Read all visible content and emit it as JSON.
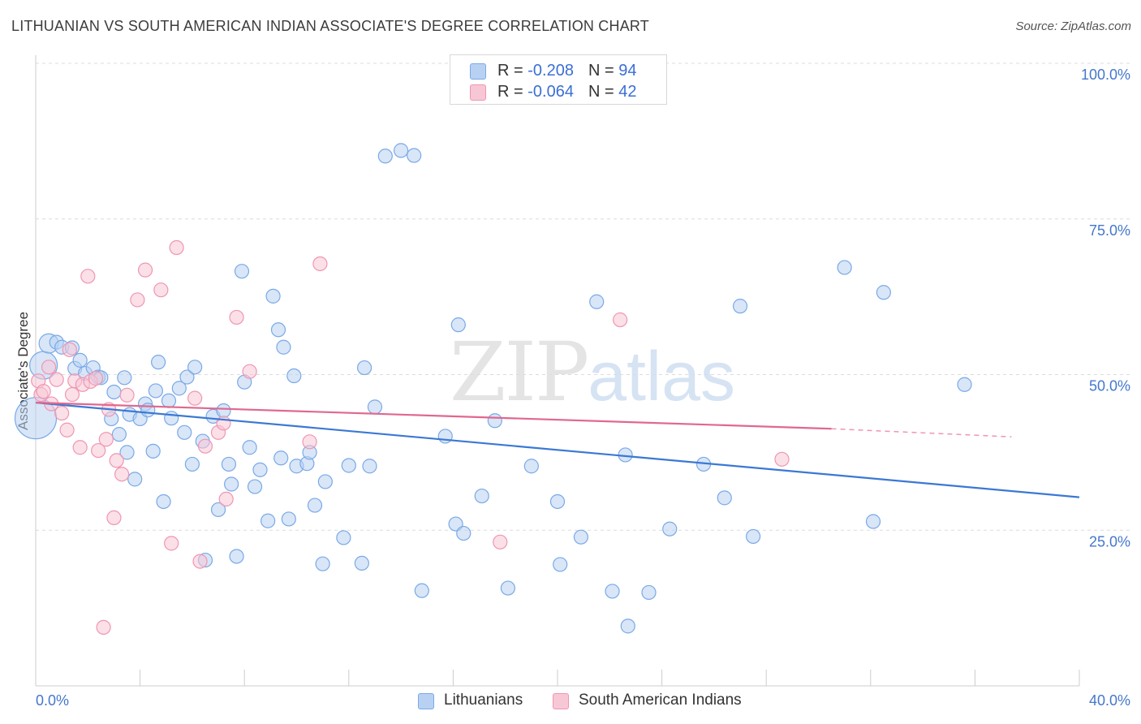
{
  "title": "LITHUANIAN VS SOUTH AMERICAN INDIAN ASSOCIATE'S DEGREE CORRELATION CHART",
  "source": "Source: ZipAtlas.com",
  "watermark": {
    "zip": "ZIP",
    "atlas": "atlas"
  },
  "legend": [
    {
      "r_label": "R = ",
      "r": "-0.208",
      "n_label": "N = ",
      "n": "94",
      "color": "#7aa9e6",
      "fill": "#b8d1f3"
    },
    {
      "r_label": "R = ",
      "r": "-0.064",
      "n_label": "N = ",
      "n": "42",
      "color": "#ef96b2",
      "fill": "#f8c7d5"
    }
  ],
  "bottom_legend": [
    "Lithuanians",
    "South American Indians"
  ],
  "chart_data": {
    "type": "scatter",
    "title": "LITHUANIAN VS SOUTH AMERICAN INDIAN ASSOCIATE'S DEGREE CORRELATION CHART",
    "xlabel": "",
    "ylabel": "Associate's Degree",
    "xlim": [
      0,
      40
    ],
    "ylim": [
      0,
      100
    ],
    "x_tick_labels": [
      "0.0%",
      "40.0%"
    ],
    "y_ticks": [
      25,
      50,
      75,
      100
    ],
    "y_tick_labels": [
      "25.0%",
      "50.0%",
      "75.0%",
      "100.0%"
    ],
    "grid": "horizontal dashed",
    "legend_position": "top-center",
    "series": [
      {
        "name": "Lithuanians",
        "color": "#3b78d4",
        "marker_fill": "#b8d1f3",
        "marker_stroke": "#7aa9e6",
        "trend": {
          "x": [
            0,
            40
          ],
          "y": [
            45.5,
            30.3
          ]
        },
        "points": [
          [
            0.0,
            43.0,
            3
          ],
          [
            0.3,
            51.5,
            2
          ],
          [
            0.5,
            55.0,
            1.4
          ],
          [
            0.8,
            55.2,
            1
          ],
          [
            1.0,
            54.4,
            1
          ],
          [
            1.4,
            54.3,
            1
          ],
          [
            1.5,
            51.0,
            1
          ],
          [
            1.7,
            52.3,
            1
          ],
          [
            1.9,
            50.2,
            1
          ],
          [
            2.2,
            51.1,
            1
          ],
          [
            2.4,
            49.6,
            1
          ],
          [
            2.5,
            49.5,
            1
          ],
          [
            2.9,
            42.9,
            1
          ],
          [
            3.0,
            47.2,
            1
          ],
          [
            3.2,
            40.4,
            1
          ],
          [
            3.4,
            49.5,
            1
          ],
          [
            3.5,
            37.5,
            1
          ],
          [
            3.6,
            43.6,
            1
          ],
          [
            3.8,
            33.2,
            1
          ],
          [
            4.0,
            42.9,
            1
          ],
          [
            4.2,
            45.3,
            1
          ],
          [
            4.3,
            44.3,
            1
          ],
          [
            4.5,
            37.7,
            1
          ],
          [
            4.6,
            47.4,
            1
          ],
          [
            4.7,
            52.0,
            1
          ],
          [
            4.9,
            29.6,
            1
          ],
          [
            5.1,
            45.8,
            1
          ],
          [
            5.2,
            43.0,
            1
          ],
          [
            5.5,
            47.8,
            1
          ],
          [
            5.7,
            40.7,
            1
          ],
          [
            5.8,
            49.6,
            1
          ],
          [
            6.0,
            35.6,
            1
          ],
          [
            6.1,
            51.2,
            1
          ],
          [
            6.4,
            39.3,
            1
          ],
          [
            6.5,
            20.2,
            1
          ],
          [
            6.8,
            43.3,
            1
          ],
          [
            7.0,
            28.3,
            1
          ],
          [
            7.2,
            44.2,
            1
          ],
          [
            7.4,
            35.6,
            1
          ],
          [
            7.5,
            32.4,
            1
          ],
          [
            7.7,
            20.8,
            1
          ],
          [
            7.9,
            66.6,
            1
          ],
          [
            8.0,
            48.8,
            1
          ],
          [
            8.2,
            38.3,
            1
          ],
          [
            8.4,
            32.0,
            1
          ],
          [
            8.6,
            34.7,
            1
          ],
          [
            8.9,
            26.5,
            1
          ],
          [
            9.1,
            62.6,
            1
          ],
          [
            9.3,
            57.2,
            1
          ],
          [
            9.4,
            36.6,
            1
          ],
          [
            9.5,
            54.4,
            1
          ],
          [
            9.7,
            26.8,
            1
          ],
          [
            9.9,
            49.8,
            1
          ],
          [
            10.0,
            35.3,
            1
          ],
          [
            10.4,
            35.7,
            1
          ],
          [
            10.5,
            37.5,
            1
          ],
          [
            10.7,
            29.0,
            1
          ],
          [
            11.0,
            19.6,
            1
          ],
          [
            11.1,
            32.8,
            1
          ],
          [
            11.8,
            23.8,
            1
          ],
          [
            12.0,
            35.4,
            1
          ],
          [
            12.5,
            19.7,
            1
          ],
          [
            12.6,
            51.1,
            1
          ],
          [
            12.8,
            35.3,
            1
          ],
          [
            13.0,
            44.8,
            1
          ],
          [
            13.4,
            85.1,
            1
          ],
          [
            14.0,
            86.0,
            1
          ],
          [
            14.5,
            85.2,
            1
          ],
          [
            14.8,
            15.3,
            1
          ],
          [
            15.7,
            40.1,
            1
          ],
          [
            16.1,
            26.0,
            1
          ],
          [
            16.2,
            58.0,
            1
          ],
          [
            16.4,
            24.5,
            1
          ],
          [
            17.1,
            30.5,
            1
          ],
          [
            17.6,
            42.6,
            1
          ],
          [
            18.1,
            15.7,
            1
          ],
          [
            19.0,
            35.3,
            1
          ],
          [
            20.0,
            29.6,
            1
          ],
          [
            20.1,
            19.5,
            1
          ],
          [
            20.9,
            23.9,
            1
          ],
          [
            21.5,
            61.7,
            1
          ],
          [
            22.1,
            15.2,
            1
          ],
          [
            22.6,
            37.1,
            1
          ],
          [
            22.7,
            9.6,
            1
          ],
          [
            23.5,
            15.0,
            1
          ],
          [
            24.3,
            25.2,
            1
          ],
          [
            25.6,
            35.6,
            1
          ],
          [
            26.4,
            30.2,
            1
          ],
          [
            27.0,
            61.0,
            1
          ],
          [
            27.5,
            24.0,
            1
          ],
          [
            31.0,
            67.2,
            1
          ],
          [
            32.1,
            26.4,
            1
          ],
          [
            32.5,
            63.2,
            1
          ],
          [
            35.6,
            48.4,
            1
          ]
        ]
      },
      {
        "name": "South American Indians",
        "color": "#e0688f",
        "marker_fill": "#f8c7d5",
        "marker_stroke": "#ef96b2",
        "trend": {
          "x": [
            0,
            30.5
          ],
          "y": [
            45.5,
            41.3
          ]
        },
        "trend_dashed": {
          "x": [
            30.5,
            37.4
          ],
          "y": [
            41.3,
            40.0
          ]
        },
        "points": [
          [
            0.1,
            49.0,
            1
          ],
          [
            0.2,
            46.8,
            1
          ],
          [
            0.3,
            47.3,
            1
          ],
          [
            0.5,
            51.2,
            1
          ],
          [
            0.6,
            45.3,
            1
          ],
          [
            0.8,
            49.2,
            1
          ],
          [
            1.0,
            43.8,
            1
          ],
          [
            1.2,
            41.1,
            1
          ],
          [
            1.3,
            54.0,
            1
          ],
          [
            1.4,
            46.8,
            1
          ],
          [
            1.5,
            49.0,
            1
          ],
          [
            1.7,
            38.3,
            1
          ],
          [
            1.8,
            48.4,
            1
          ],
          [
            2.0,
            65.8,
            1
          ],
          [
            2.1,
            48.9,
            1
          ],
          [
            2.3,
            49.4,
            1
          ],
          [
            2.4,
            37.8,
            1
          ],
          [
            2.6,
            9.4,
            1
          ],
          [
            2.7,
            39.6,
            1
          ],
          [
            2.8,
            44.4,
            1
          ],
          [
            3.0,
            27.0,
            1
          ],
          [
            3.1,
            36.2,
            1
          ],
          [
            3.3,
            34.0,
            1
          ],
          [
            3.5,
            46.7,
            1
          ],
          [
            3.9,
            62.0,
            1
          ],
          [
            4.2,
            66.8,
            1
          ],
          [
            4.8,
            63.6,
            1
          ],
          [
            5.2,
            22.9,
            1
          ],
          [
            5.4,
            70.4,
            1
          ],
          [
            6.1,
            46.2,
            1
          ],
          [
            6.3,
            20.0,
            1
          ],
          [
            6.5,
            38.5,
            1
          ],
          [
            7.0,
            40.7,
            1
          ],
          [
            7.2,
            42.2,
            1
          ],
          [
            7.3,
            30.0,
            1
          ],
          [
            7.7,
            59.2,
            1
          ],
          [
            8.2,
            50.5,
            1
          ],
          [
            10.5,
            39.2,
            1
          ],
          [
            10.9,
            67.8,
            1
          ],
          [
            17.8,
            23.1,
            1
          ],
          [
            22.4,
            58.8,
            1
          ],
          [
            28.6,
            36.4,
            1
          ]
        ]
      }
    ]
  }
}
